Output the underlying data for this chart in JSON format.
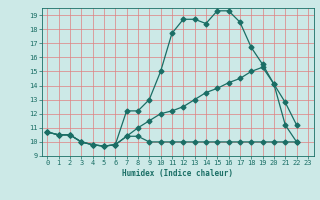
{
  "xlabel": "Humidex (Indice chaleur)",
  "bg_color": "#cce9e7",
  "grid_color": "#e08080",
  "line_color": "#1a6e65",
  "xlim": [
    -0.5,
    23.5
  ],
  "ylim": [
    9,
    19.5
  ],
  "yticks": [
    9,
    10,
    11,
    12,
    13,
    14,
    15,
    16,
    17,
    18,
    19
  ],
  "xticks": [
    0,
    1,
    2,
    3,
    4,
    5,
    6,
    7,
    8,
    9,
    10,
    11,
    12,
    13,
    14,
    15,
    16,
    17,
    18,
    19,
    20,
    21,
    22,
    23
  ],
  "line1_x": [
    0,
    1,
    2,
    3,
    4,
    5,
    6,
    7,
    8,
    9,
    10,
    11,
    12,
    13,
    14,
    15,
    16,
    17,
    18,
    19,
    20,
    21,
    22
  ],
  "line1_y": [
    10.7,
    10.5,
    10.5,
    10.0,
    9.8,
    9.7,
    9.8,
    10.4,
    10.4,
    10.0,
    10.0,
    10.0,
    10.0,
    10.0,
    10.0,
    10.0,
    10.0,
    10.0,
    10.0,
    10.0,
    10.0,
    10.0,
    10.0
  ],
  "line2_x": [
    0,
    1,
    2,
    3,
    4,
    5,
    6,
    7,
    8,
    9,
    10,
    11,
    12,
    13,
    14,
    15,
    16,
    17,
    18,
    19,
    20,
    21,
    22
  ],
  "line2_y": [
    10.7,
    10.5,
    10.5,
    10.0,
    9.8,
    9.7,
    9.8,
    12.2,
    12.2,
    13.0,
    15.0,
    17.7,
    18.7,
    18.7,
    18.4,
    19.3,
    19.3,
    18.5,
    16.7,
    15.5,
    14.1,
    12.8,
    11.2
  ],
  "line3_x": [
    0,
    1,
    2,
    3,
    4,
    5,
    6,
    7,
    8,
    9,
    10,
    11,
    12,
    13,
    14,
    15,
    16,
    17,
    18,
    19,
    20,
    21,
    22
  ],
  "line3_y": [
    10.7,
    10.5,
    10.5,
    10.0,
    9.8,
    9.7,
    9.8,
    10.4,
    11.0,
    11.5,
    12.0,
    12.2,
    12.5,
    13.0,
    13.5,
    13.8,
    14.2,
    14.5,
    15.0,
    15.3,
    14.1,
    11.2,
    10.0
  ]
}
